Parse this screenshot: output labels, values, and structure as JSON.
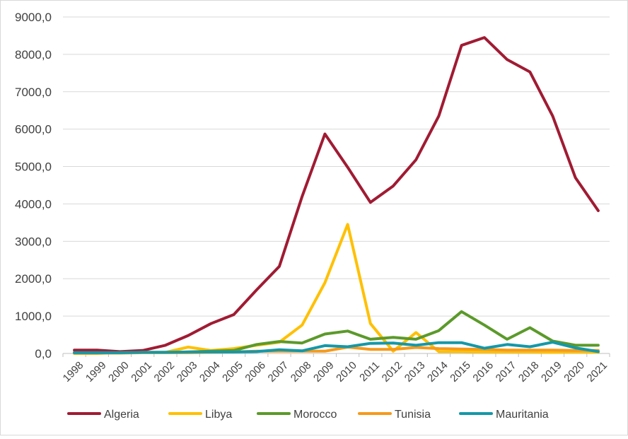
{
  "chart_data": {
    "type": "line",
    "title": "",
    "xlabel": "",
    "ylabel": "",
    "ylim": [
      0,
      9000
    ],
    "yticks": [
      "0,0",
      "1000,0",
      "2000,0",
      "3000,0",
      "4000,0",
      "5000,0",
      "6000,0",
      "7000,0",
      "8000,0",
      "9000,0"
    ],
    "grid": "horizontal",
    "legend_position": "bottom",
    "x": [
      "1998",
      "1999",
      "2000",
      "2001",
      "2002",
      "2003",
      "2004",
      "2005",
      "2006",
      "2007",
      "2008",
      "2009",
      "2010",
      "2011",
      "2012",
      "2013",
      "2014",
      "2015",
      "2016",
      "2017",
      "2018",
      "2019",
      "2020",
      "2021"
    ],
    "series": [
      {
        "name": "Algeria",
        "color": "#a01b33",
        "values": [
          90,
          90,
          50,
          80,
          220,
          480,
          800,
          1040,
          1700,
          2330,
          4200,
          5870,
          4980,
          4040,
          4480,
          5180,
          6350,
          8240,
          8450,
          7860,
          7530,
          6350,
          4700,
          3820
        ]
      },
      {
        "name": "Libya",
        "color": "#ffc000",
        "values": [
          0,
          0,
          20,
          30,
          30,
          170,
          80,
          130,
          220,
          300,
          760,
          1890,
          3450,
          800,
          60,
          560,
          50,
          50,
          40,
          40,
          40,
          30,
          40,
          30
        ]
      },
      {
        "name": "Morocco",
        "color": "#5b9a2a",
        "values": [
          20,
          20,
          20,
          30,
          30,
          40,
          60,
          80,
          240,
          320,
          280,
          520,
          600,
          380,
          430,
          380,
          610,
          1120,
          760,
          380,
          690,
          330,
          220,
          220
        ]
      },
      {
        "name": "Tunisia",
        "color": "#f59a1b",
        "values": [
          10,
          10,
          10,
          20,
          20,
          20,
          30,
          40,
          60,
          60,
          60,
          60,
          170,
          110,
          110,
          160,
          130,
          120,
          110,
          90,
          90,
          90,
          80,
          80
        ]
      },
      {
        "name": "Mauritania",
        "color": "#1498a8",
        "values": [
          20,
          20,
          20,
          30,
          30,
          40,
          40,
          40,
          50,
          100,
          70,
          210,
          180,
          270,
          280,
          220,
          290,
          290,
          140,
          240,
          180,
          300,
          150,
          50
        ]
      }
    ]
  }
}
